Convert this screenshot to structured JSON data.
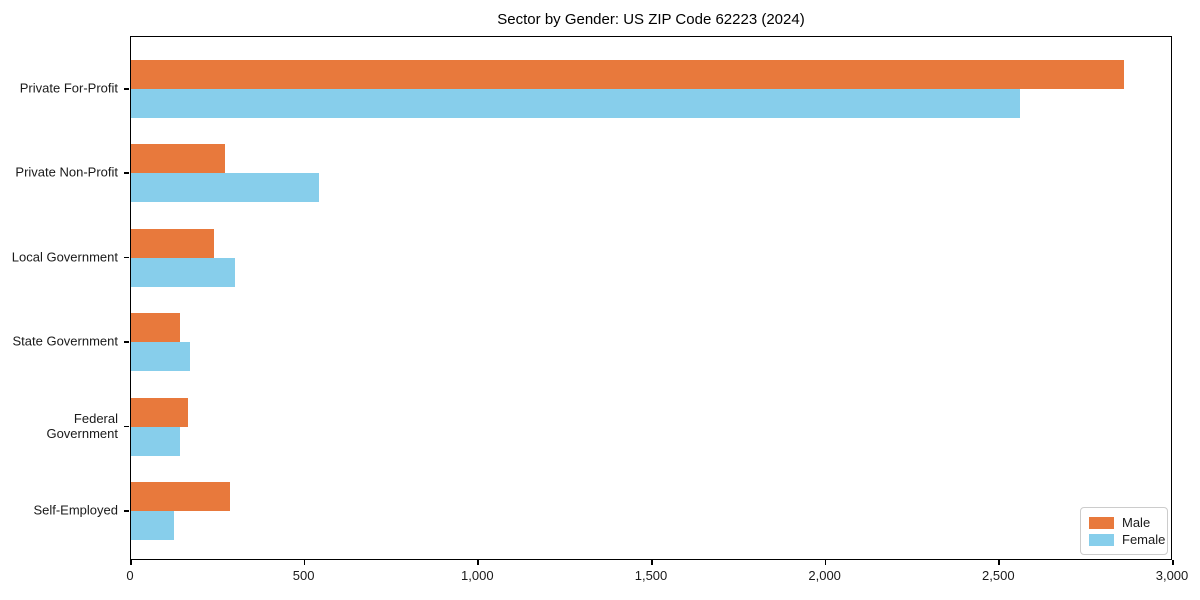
{
  "figure": {
    "title": "Sector by Gender: US ZIP Code 62223 (2024)"
  },
  "chart_data": {
    "type": "bar",
    "orientation": "horizontal",
    "title": "Sector by Gender: US ZIP Code 62223 (2024)",
    "categories": [
      "Private For-Profit",
      "Private Non-Profit",
      "Local Government",
      "State Government",
      "Federal Government",
      "Self-Employed"
    ],
    "series": [
      {
        "name": "Male",
        "color": "#e8793c",
        "values": [
          2860,
          270,
          240,
          140,
          165,
          285
        ]
      },
      {
        "name": "Female",
        "color": "#87ceeb",
        "values": [
          2560,
          540,
          300,
          170,
          140,
          125
        ]
      }
    ],
    "xlabel": "",
    "ylabel": "",
    "xlim": [
      0,
      3000
    ],
    "x_ticks": [
      {
        "value": 0,
        "label": "0"
      },
      {
        "value": 500,
        "label": "500"
      },
      {
        "value": 1000,
        "label": "1,000"
      },
      {
        "value": 1500,
        "label": "1,500"
      },
      {
        "value": 2000,
        "label": "2,000"
      },
      {
        "value": 2500,
        "label": "2,500"
      },
      {
        "value": 3000,
        "label": "3,000"
      }
    ],
    "grid": false,
    "legend_position": "lower right",
    "colors": {
      "male": "#e8793c",
      "female": "#87ceeb",
      "axis": "#000000",
      "legend_border": "#cccccc"
    }
  }
}
